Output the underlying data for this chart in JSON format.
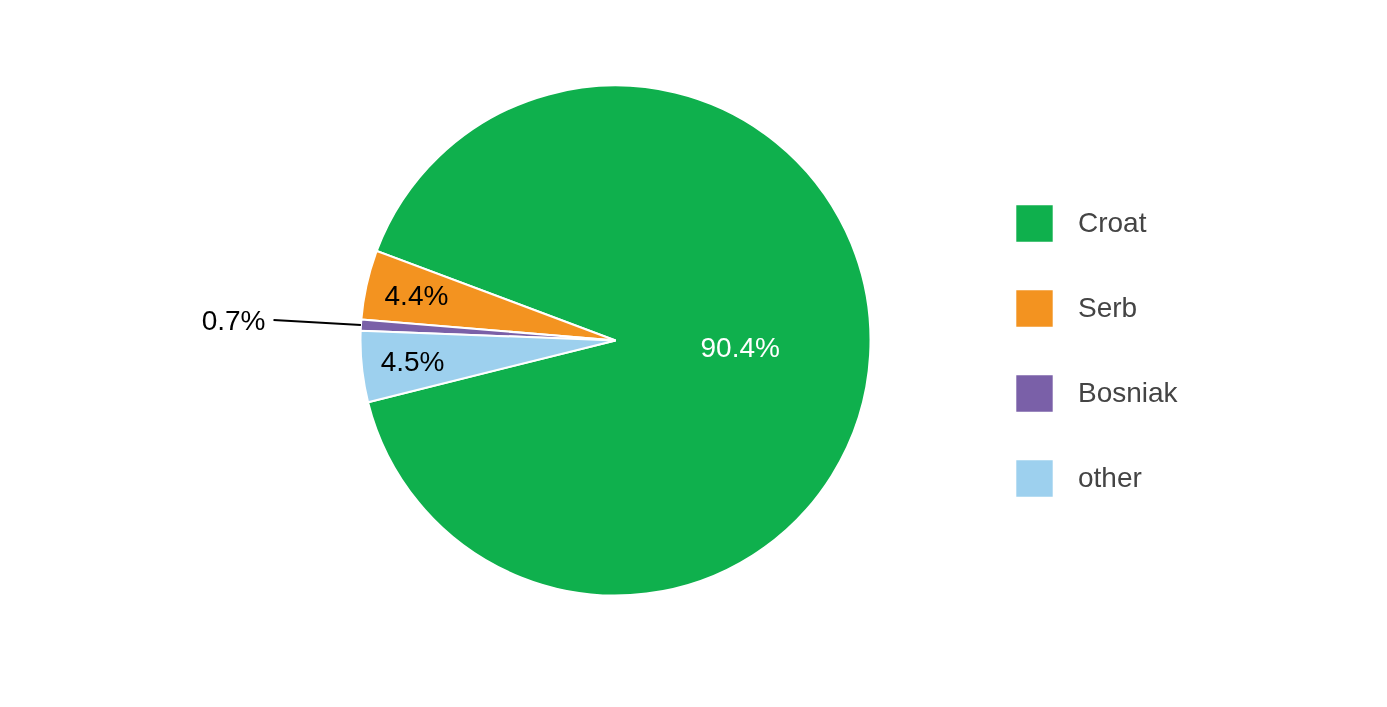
{
  "chart_data": {
    "type": "pie",
    "categories": [
      "Croat",
      "Serb",
      "Bosniak",
      "other"
    ],
    "values": [
      90.4,
      4.4,
      0.7,
      4.5
    ],
    "colors": [
      "#0fb04d",
      "#f39320",
      "#7a60a8",
      "#9dd0ee"
    ],
    "value_labels": [
      "90.4%",
      "4.4%",
      "0.7%",
      "4.5%"
    ],
    "legend": "right"
  }
}
